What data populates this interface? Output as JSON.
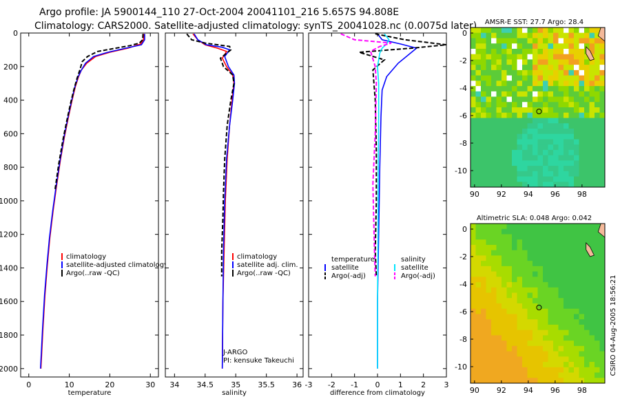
{
  "header": {
    "line1": "Argo profile: JA 5900144_110 27-Oct-2004 20041101_216 5.657S 94.808E",
    "line2": "Climatology: CARS2000. Satellite-adjusted climatology: synTS_20041028.nc (0.0075d later)"
  },
  "colors": {
    "climatology": "#ff0000",
    "satellite": "#0000ff",
    "argo": "#000000",
    "salinity_satellite": "#00e5ff",
    "salinity_argo": "#ff00ff",
    "land": "#f4b99a"
  },
  "footer": {
    "credit": "CSIRO 04-Aug-2005 18:56:21"
  },
  "chart_data": [
    {
      "id": "temperature",
      "type": "line",
      "xlabel": "temperature",
      "ylabel": "",
      "xlim": [
        -2,
        32
      ],
      "ylim": [
        2050,
        0
      ],
      "xticks": [
        0,
        10,
        20,
        30
      ],
      "xticklabels": [
        "0",
        "10",
        "20",
        "30"
      ],
      "yticks": [
        0,
        200,
        400,
        600,
        800,
        1000,
        1200,
        1400,
        1600,
        1800,
        2000
      ],
      "yticklabels": [
        "0",
        "200",
        "400",
        "600",
        "800",
        "1000",
        "1200",
        "1400",
        "1600",
        "1800",
        "2000"
      ],
      "legend": [
        "climatology",
        "satellite-adjusted climatology",
        "Argo(..raw -QC)"
      ],
      "series": [
        {
          "name": "climatology",
          "color": "#ff0000",
          "dash": false,
          "points": [
            [
              28.4,
              5
            ],
            [
              28.3,
              40
            ],
            [
              27.6,
              65
            ],
            [
              24.5,
              90
            ],
            [
              20,
              115
            ],
            [
              16.5,
              140
            ],
            [
              14.3,
              180
            ],
            [
              13,
              220
            ],
            [
              12.3,
              260
            ],
            [
              11.5,
              320
            ],
            [
              10.7,
              400
            ],
            [
              9.8,
              500
            ],
            [
              8.8,
              620
            ],
            [
              7.8,
              760
            ],
            [
              6.8,
              920
            ],
            [
              6,
              1060
            ],
            [
              5.2,
              1220
            ],
            [
              4.6,
              1380
            ],
            [
              4,
              1560
            ],
            [
              3.5,
              1760
            ],
            [
              3,
              2000
            ]
          ]
        },
        {
          "name": "satellite-adjusted climatology",
          "color": "#0000ff",
          "dash": false,
          "points": [
            [
              28.6,
              5
            ],
            [
              28.6,
              40
            ],
            [
              27.8,
              70
            ],
            [
              24,
              90
            ],
            [
              19.5,
              115
            ],
            [
              16,
              140
            ],
            [
              14,
              180
            ],
            [
              13,
              220
            ],
            [
              12.2,
              260
            ],
            [
              11.4,
              320
            ],
            [
              10.6,
              400
            ],
            [
              9.7,
              500
            ],
            [
              8.7,
              620
            ],
            [
              7.7,
              760
            ],
            [
              6.7,
              920
            ],
            [
              5.9,
              1060
            ],
            [
              5.1,
              1220
            ],
            [
              4.5,
              1380
            ],
            [
              3.9,
              1560
            ],
            [
              3.4,
              1760
            ],
            [
              2.9,
              2000
            ]
          ]
        },
        {
          "name": "Argo(..raw -QC)",
          "color": "#000000",
          "dash": true,
          "points": [
            [
              28.2,
              5
            ],
            [
              28.1,
              40
            ],
            [
              27.3,
              60
            ],
            [
              25,
              75
            ],
            [
              21.5,
              90
            ],
            [
              17,
              110
            ],
            [
              14.5,
              140
            ],
            [
              13.2,
              170
            ],
            [
              12.6,
              220
            ],
            [
              11.9,
              270
            ],
            [
              11.1,
              340
            ],
            [
              10.3,
              420
            ],
            [
              9.4,
              520
            ],
            [
              8.4,
              640
            ],
            [
              7.4,
              780
            ],
            [
              6.5,
              930
            ]
          ]
        }
      ]
    },
    {
      "id": "salinity",
      "type": "line",
      "xlabel": "salinity",
      "ylabel": "",
      "xlim": [
        33.85,
        36.1
      ],
      "ylim": [
        2050,
        0
      ],
      "xticks": [
        34,
        34.5,
        35,
        35.5,
        36
      ],
      "xticklabels": [
        "34",
        "34.5",
        "35",
        "35.5",
        "36"
      ],
      "legend": [
        "climatology",
        "satellite adj. clim.",
        "Argo(..raw -QC)"
      ],
      "annotation_lines": [
        "J-ARGO",
        "PI: kensuke Takeuchi"
      ],
      "series": [
        {
          "name": "climatology",
          "color": "#ff0000",
          "dash": false,
          "points": [
            [
              34.3,
              5
            ],
            [
              34.38,
              40
            ],
            [
              34.5,
              70
            ],
            [
              34.7,
              90
            ],
            [
              34.85,
              110
            ],
            [
              34.78,
              150
            ],
            [
              34.85,
              200
            ],
            [
              34.95,
              250
            ],
            [
              34.97,
              300
            ],
            [
              34.94,
              400
            ],
            [
              34.9,
              550
            ],
            [
              34.86,
              750
            ],
            [
              34.83,
              1000
            ],
            [
              34.81,
              1300
            ],
            [
              34.79,
              1600
            ],
            [
              34.78,
              2000
            ]
          ]
        },
        {
          "name": "satellite adj. clim.",
          "color": "#0000ff",
          "dash": false,
          "points": [
            [
              34.32,
              5
            ],
            [
              34.38,
              40
            ],
            [
              34.52,
              70
            ],
            [
              34.78,
              85
            ],
            [
              34.9,
              100
            ],
            [
              34.82,
              140
            ],
            [
              34.88,
              200
            ],
            [
              34.97,
              250
            ],
            [
              34.98,
              300
            ],
            [
              34.95,
              400
            ],
            [
              34.9,
              550
            ],
            [
              34.85,
              750
            ],
            [
              34.82,
              1000
            ],
            [
              34.8,
              1300
            ],
            [
              34.79,
              1600
            ],
            [
              34.78,
              2000
            ]
          ]
        },
        {
          "name": "Argo(..raw -QC)",
          "color": "#000000",
          "dash": true,
          "points": [
            [
              34.2,
              5
            ],
            [
              34.28,
              40
            ],
            [
              34.5,
              60
            ],
            [
              34.9,
              80
            ],
            [
              34.92,
              100
            ],
            [
              34.75,
              150
            ],
            [
              34.8,
              200
            ],
            [
              34.95,
              250
            ],
            [
              34.97,
              300
            ],
            [
              34.92,
              400
            ],
            [
              34.86,
              550
            ],
            [
              34.82,
              750
            ],
            [
              34.8,
              950
            ],
            [
              34.79,
              1100
            ],
            [
              34.77,
              1300
            ],
            [
              34.77,
              1450
            ]
          ]
        }
      ]
    },
    {
      "id": "difference",
      "type": "line",
      "xlabel": "difference from climatology",
      "ylabel": "",
      "xlim": [
        -3,
        3
      ],
      "ylim": [
        2050,
        0
      ],
      "xticks": [
        -3,
        -2,
        -1,
        0,
        1,
        2,
        3
      ],
      "xticklabels": [
        "-3",
        "-2",
        "-1",
        "0",
        "1",
        "2",
        "3"
      ],
      "legend_groups": [
        {
          "heading": "temperature",
          "entries": [
            "satellite",
            "Argo(-adj)"
          ]
        },
        {
          "heading": "salinity",
          "entries": [
            "satellite",
            "Argo(-adj)"
          ]
        }
      ],
      "series": [
        {
          "name": "temperature satellite",
          "color": "#0000ff",
          "dash": false,
          "points": [
            [
              0,
              5
            ],
            [
              0.2,
              40
            ],
            [
              1,
              65
            ],
            [
              1.7,
              90
            ],
            [
              0.9,
              180
            ],
            [
              0.4,
              260
            ],
            [
              0.2,
              340
            ],
            [
              0.15,
              500
            ],
            [
              0.1,
              800
            ],
            [
              0.05,
              1200
            ],
            [
              0,
              1600
            ],
            [
              0,
              2000
            ]
          ]
        },
        {
          "name": "temperature Argo(-adj)",
          "color": "#000000",
          "dash": true,
          "points": [
            [
              -0.1,
              5
            ],
            [
              1.2,
              40
            ],
            [
              3,
              70
            ],
            [
              1.5,
              90
            ],
            [
              -0.8,
              115
            ],
            [
              0.3,
              160
            ],
            [
              -0.2,
              220
            ],
            [
              -0.1,
              400
            ],
            [
              -0.05,
              700
            ],
            [
              -0.05,
              1000
            ],
            [
              -0.1,
              1300
            ],
            [
              -0.05,
              1450
            ]
          ]
        },
        {
          "name": "salinity satellite",
          "color": "#00e5ff",
          "dash": false,
          "points": [
            [
              0.3,
              5
            ],
            [
              0.5,
              40
            ],
            [
              0.4,
              65
            ],
            [
              0.2,
              90
            ],
            [
              0.1,
              120
            ],
            [
              0,
              200
            ],
            [
              0.05,
              300
            ],
            [
              0.05,
              500
            ],
            [
              0.03,
              800
            ],
            [
              0.02,
              1200
            ],
            [
              0,
              1600
            ],
            [
              0,
              2000
            ]
          ]
        },
        {
          "name": "salinity Argo(-adj)",
          "color": "#ff00ff",
          "dash": true,
          "points": [
            [
              -1.6,
              5
            ],
            [
              -1,
              40
            ],
            [
              0.6,
              60
            ],
            [
              0.1,
              80
            ],
            [
              -0.3,
              110
            ],
            [
              -0.1,
              200
            ],
            [
              -0.05,
              300
            ],
            [
              -0.1,
              600
            ],
            [
              -0.2,
              900
            ],
            [
              -0.15,
              1200
            ],
            [
              -0.1,
              1450
            ]
          ]
        }
      ]
    },
    {
      "id": "sst-map",
      "type": "heatmap",
      "title": "AMSR-E SST: 27.7 Argo: 28.4",
      "xlim": [
        89.7,
        99.7
      ],
      "ylim": [
        -11.2,
        0.4
      ],
      "xticks": [
        90,
        92,
        94,
        96,
        98
      ],
      "xticklabels": [
        "90",
        "92",
        "94",
        "96",
        "98"
      ],
      "yticks": [
        0,
        -2,
        -4,
        -6,
        -8,
        -10
      ],
      "yticklabels": [
        "0",
        "-2",
        "-4",
        "-6",
        "-8",
        "-10"
      ],
      "marker": {
        "lon": 94.8,
        "lat": -5.7
      }
    },
    {
      "id": "sla-map",
      "type": "heatmap",
      "title": "Altimetric SLA: 0.048 Argo: 0.042",
      "xlim": [
        89.7,
        99.7
      ],
      "ylim": [
        -11.2,
        0.4
      ],
      "xticks": [
        90,
        92,
        94,
        96,
        98
      ],
      "xticklabels": [
        "90",
        "92",
        "94",
        "96",
        "98"
      ],
      "yticks": [
        0,
        -2,
        -4,
        -6,
        -8,
        -10
      ],
      "yticklabels": [
        "0",
        "-2",
        "-4",
        "-6",
        "-8",
        "-10"
      ],
      "marker": {
        "lon": 94.8,
        "lat": -5.7
      }
    }
  ]
}
